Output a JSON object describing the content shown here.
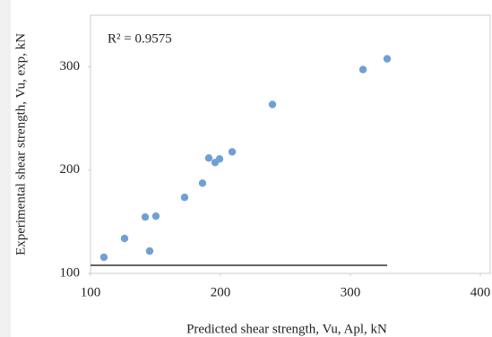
{
  "chart_data": {
    "type": "scatter",
    "annotation": "R² = 0.9575",
    "x_label": "Predicted shear strength, Vu, Apl, kN",
    "y_label": "Experimental shear strength, Vu, exp, kN",
    "x": [
      110.3,
      126.2,
      142.1,
      150.3,
      145.5,
      172.4,
      186.2,
      191.0,
      195.9,
      199.3,
      209.0,
      240.0,
      309.7,
      328.3
    ],
    "series": [
      {
        "color": "#6fa0d4",
        "values": [
          115.6,
          133.8,
          154.5,
          155.4,
          121.6,
          173.6,
          187.4,
          211.7,
          207.4,
          210.8,
          217.7,
          263.6,
          297.4,
          307.8
        ]
      }
    ],
    "xlim": [
      100,
      400
    ],
    "xticks": [
      100,
      200,
      300,
      400
    ],
    "ylim": [
      100,
      350
    ],
    "yticks": [
      100,
      200,
      300
    ]
  }
}
